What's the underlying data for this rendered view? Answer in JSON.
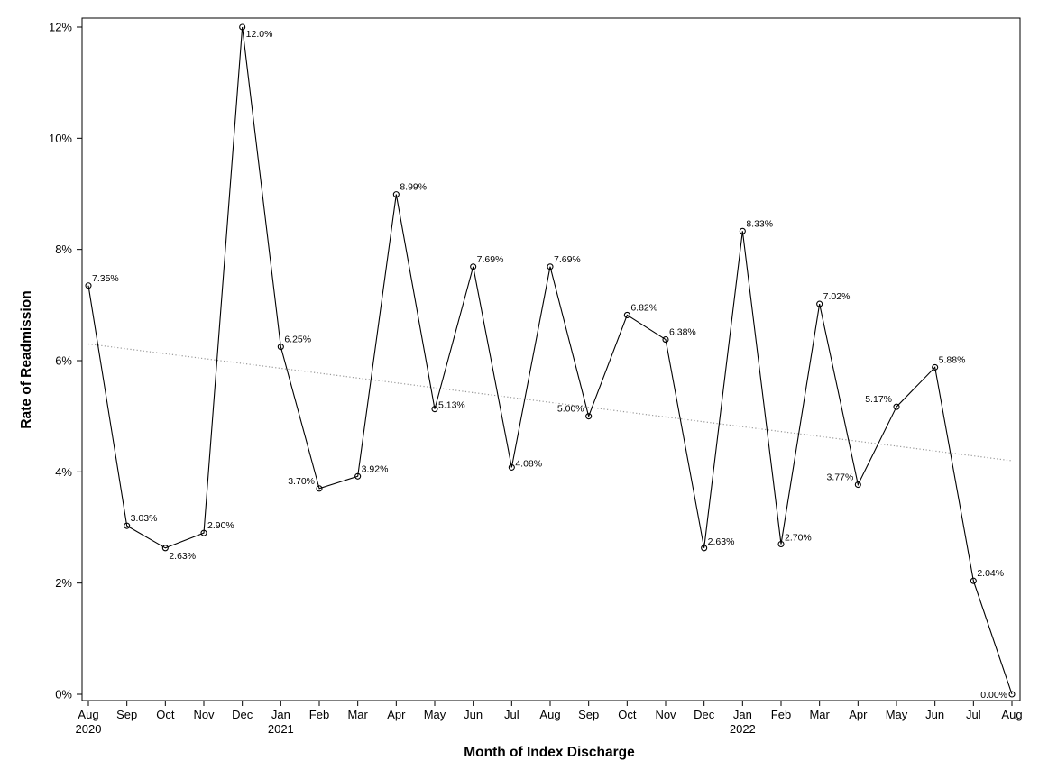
{
  "chart_data": {
    "type": "line",
    "title": "",
    "xlabel": "Month of Index Discharge",
    "ylabel": "Rate of Readmission",
    "ylim": [
      0,
      12
    ],
    "y_ticks": [
      "0%",
      "2%",
      "4%",
      "6%",
      "8%",
      "10%",
      "12%"
    ],
    "grid": false,
    "legend": "none",
    "categories": [
      "Aug",
      "Sep",
      "Oct",
      "Nov",
      "Dec",
      "Jan",
      "Feb",
      "Mar",
      "Apr",
      "May",
      "Jun",
      "Jul",
      "Aug",
      "Sep",
      "Oct",
      "Nov",
      "Dec",
      "Jan",
      "Feb",
      "Mar",
      "Apr",
      "May",
      "Jun",
      "Jul",
      "Aug"
    ],
    "year_labels": [
      {
        "index": 0,
        "label": "2020"
      },
      {
        "index": 5,
        "label": "2021"
      },
      {
        "index": 17,
        "label": "2022"
      }
    ],
    "series": [
      {
        "values": [
          7.35,
          3.03,
          2.63,
          2.9,
          12.0,
          6.25,
          3.7,
          3.92,
          8.99,
          5.13,
          7.69,
          4.08,
          7.69,
          5.0,
          6.82,
          6.38,
          2.63,
          8.33,
          2.7,
          7.02,
          3.77,
          5.17,
          5.88,
          2.04,
          0.0
        ],
        "labels": [
          "7.35%",
          "3.03%",
          "2.63%",
          "2.90%",
          "12.0%",
          "6.25%",
          "3.70%",
          "3.92%",
          "8.99%",
          "5.13%",
          "7.69%",
          "4.08%",
          "7.69%",
          "5.00%",
          "6.82%",
          "6.38%",
          "2.63%",
          "8.33%",
          "2.70%",
          "7.02%",
          "3.77%",
          "5.17%",
          "5.88%",
          "2.04%",
          "0.00%"
        ],
        "color": "#000000"
      }
    ],
    "trend_line": {
      "start": 6.3,
      "end": 4.2,
      "style": "dotted",
      "color": "#999999"
    }
  }
}
